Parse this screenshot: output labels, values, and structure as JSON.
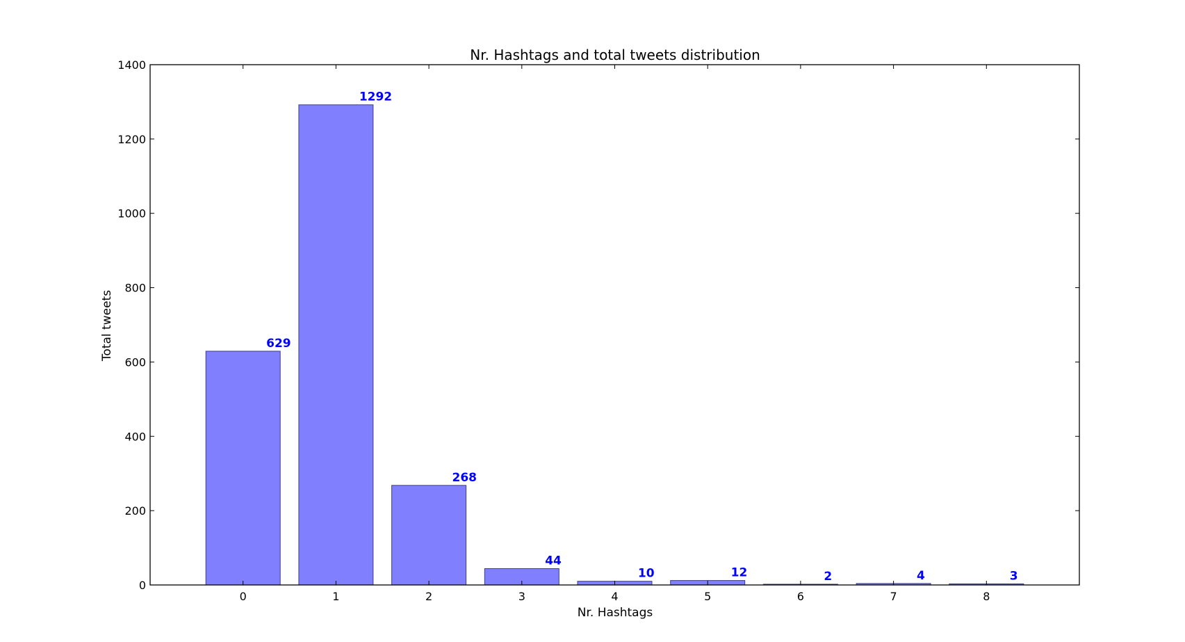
{
  "chart_data": {
    "type": "bar",
    "title": "Nr. Hashtags and total tweets distribution",
    "xlabel": "Nr. Hashtags",
    "ylabel": "Total tweets",
    "categories": [
      "0",
      "1",
      "2",
      "3",
      "4",
      "5",
      "6",
      "7",
      "8"
    ],
    "values": [
      629,
      1292,
      268,
      44,
      10,
      12,
      2,
      4,
      3
    ],
    "data_labels": [
      "629",
      "1292",
      "268",
      "44",
      "10",
      "12",
      "2",
      "4",
      "3"
    ],
    "ylim": [
      0,
      1400
    ],
    "xlim": [
      -1,
      9
    ],
    "yticks": [
      0,
      200,
      400,
      600,
      800,
      1000,
      1200,
      1400
    ],
    "ytick_labels": [
      "0",
      "200",
      "400",
      "600",
      "800",
      "1000",
      "1200",
      "1400"
    ],
    "bar_color": "#8080ff",
    "bar_edge_color": "#3c3c8c",
    "label_color": "#0000ff",
    "grid": false,
    "legend": "none"
  }
}
